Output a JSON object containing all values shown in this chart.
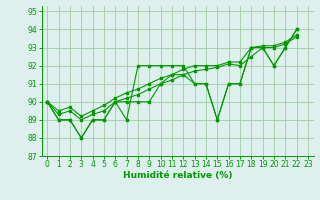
{
  "xlabel": "Humidité relative (%)",
  "background_color": "#ddf0ee",
  "grid_color": "#aacfaa",
  "line_color": "#009900",
  "xlim": [
    -0.5,
    23.5
  ],
  "ylim": [
    87,
    95.3
  ],
  "yticks": [
    87,
    88,
    89,
    90,
    91,
    92,
    93,
    94,
    95
  ],
  "xticks": [
    0,
    1,
    2,
    3,
    4,
    5,
    6,
    7,
    8,
    9,
    10,
    11,
    12,
    13,
    14,
    15,
    16,
    17,
    18,
    19,
    20,
    21,
    22,
    23
  ],
  "series": [
    [
      90,
      89,
      89,
      88,
      89,
      89,
      90,
      89,
      92,
      92,
      92,
      92,
      92,
      91,
      91,
      89,
      91,
      91,
      93,
      93,
      92,
      93,
      94
    ],
    [
      90,
      89,
      89,
      88,
      89,
      89,
      90,
      90,
      90,
      90,
      91,
      91.5,
      91.5,
      91,
      91,
      89,
      91,
      91,
      93,
      93,
      92,
      93,
      94
    ],
    [
      90,
      89.3,
      89.5,
      89.0,
      89.3,
      89.5,
      90.0,
      90.2,
      90.4,
      90.7,
      91.0,
      91.2,
      91.5,
      91.7,
      91.8,
      91.9,
      92.1,
      92.0,
      92.5,
      93.0,
      93.0,
      93.2,
      93.6
    ],
    [
      90,
      89.5,
      89.7,
      89.2,
      89.5,
      89.8,
      90.2,
      90.5,
      90.7,
      91.0,
      91.3,
      91.5,
      91.8,
      92.0,
      92.0,
      92.0,
      92.2,
      92.2,
      93.0,
      93.1,
      93.1,
      93.3,
      93.7
    ]
  ]
}
